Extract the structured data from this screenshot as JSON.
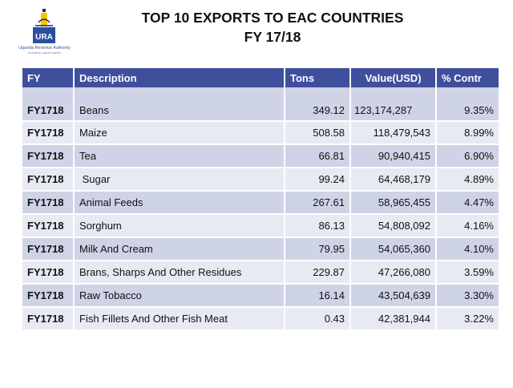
{
  "title_line1": "TOP 10 EXPORTS TO EAC COUNTRIES",
  "title_line2": "FY 17/18",
  "logo": {
    "name": "Uganda Revenue Authority",
    "abbrev": "URA",
    "tagline": "developing uganda together",
    "colors": {
      "blue": "#2a4ea0",
      "yellow": "#f5c400",
      "dark": "#1c2a5a"
    }
  },
  "colors": {
    "header": "#3f4f9c",
    "row_odd": "#cfd3e6",
    "row_even": "#e8eaf3"
  },
  "table": {
    "headers": [
      "FY",
      "Description",
      "Tons",
      "Value(USD)",
      "% Contr"
    ],
    "rows": [
      {
        "fy": "FY1718",
        "description": "Beans",
        "tons": "349.12",
        "value": "123,174,287",
        "contr": "9.35%"
      },
      {
        "fy": "FY1718",
        "description": "Maize",
        "tons": "508.58",
        "value": "118,479,543",
        "contr": "8.99%"
      },
      {
        "fy": "FY1718",
        "description": "Tea",
        "tons": "66.81",
        "value": "90,940,415",
        "contr": "6.90%"
      },
      {
        "fy": "FY1718",
        "description": " Sugar",
        "tons": "99.24",
        "value": "64,468,179",
        "contr": "4.89%"
      },
      {
        "fy": "FY1718",
        "description": "Animal Feeds",
        "tons": "267.61",
        "value": "58,965,455",
        "contr": "4.47%"
      },
      {
        "fy": "FY1718",
        "description": "Sorghum",
        "tons": "86.13",
        "value": "54,808,092",
        "contr": "4.16%"
      },
      {
        "fy": "FY1718",
        "description": "Milk And Cream",
        "tons": "79.95",
        "value": "54,065,360",
        "contr": "4.10%"
      },
      {
        "fy": "FY1718",
        "description": "Brans, Sharps And Other Residues",
        "tons": "229.87",
        "value": "47,266,080",
        "contr": "3.59%"
      },
      {
        "fy": "FY1718",
        "description": "Raw Tobacco",
        "tons": "16.14",
        "value": "43,504,639",
        "contr": "3.30%"
      },
      {
        "fy": "FY1718",
        "description": "Fish Fillets And Other Fish Meat",
        "tons": "0.43",
        "value": "42,381,944",
        "contr": "3.22%"
      }
    ]
  }
}
